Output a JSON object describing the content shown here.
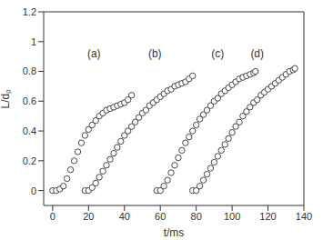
{
  "chart_data": {
    "type": "scatter",
    "x_label": "t/ms",
    "y_label": "L/dₚ",
    "xlim": [
      -5,
      140
    ],
    "xticks": [
      0,
      20,
      40,
      60,
      80,
      100,
      120,
      140
    ],
    "ylim": [
      -0.1,
      1.2
    ],
    "yticks": [
      0,
      0.2,
      0.4,
      0.6,
      0.8,
      1.0,
      1.2
    ],
    "marker": "circle",
    "grid": false,
    "series": [
      {
        "name": "(a)",
        "color": "#333333",
        "x": [
          0,
          2,
          4,
          6,
          8,
          10,
          12,
          14,
          16,
          18,
          20,
          22,
          24,
          26,
          28,
          30,
          32,
          34,
          36,
          38,
          40,
          42,
          44
        ],
        "values": [
          0,
          0,
          0.01,
          0.03,
          0.08,
          0.14,
          0.2,
          0.26,
          0.32,
          0.37,
          0.41,
          0.44,
          0.47,
          0.5,
          0.52,
          0.54,
          0.55,
          0.56,
          0.57,
          0.58,
          0.59,
          0.61,
          0.64
        ]
      },
      {
        "name": "(b)",
        "color": "#333333",
        "x": [
          18,
          20,
          22,
          24,
          26,
          28,
          30,
          32,
          34,
          36,
          38,
          40,
          42,
          44,
          46,
          48,
          50,
          52,
          54,
          56,
          58,
          60,
          62,
          64,
          66,
          68,
          70,
          72,
          74,
          76,
          78
        ],
        "values": [
          0,
          0,
          0.02,
          0.05,
          0.09,
          0.13,
          0.17,
          0.21,
          0.25,
          0.29,
          0.33,
          0.37,
          0.4,
          0.43,
          0.46,
          0.49,
          0.52,
          0.54,
          0.57,
          0.59,
          0.61,
          0.63,
          0.65,
          0.67,
          0.68,
          0.7,
          0.71,
          0.72,
          0.73,
          0.75,
          0.77
        ]
      },
      {
        "name": "(c)",
        "color": "#333333",
        "x": [
          58,
          60,
          62,
          64,
          66,
          68,
          70,
          72,
          74,
          76,
          78,
          80,
          82,
          84,
          86,
          88,
          90,
          92,
          94,
          96,
          98,
          100,
          102,
          104,
          106,
          108,
          110,
          112,
          113
        ],
        "values": [
          0,
          0,
          0.03,
          0.07,
          0.12,
          0.17,
          0.22,
          0.27,
          0.32,
          0.36,
          0.4,
          0.44,
          0.48,
          0.51,
          0.54,
          0.57,
          0.6,
          0.62,
          0.65,
          0.67,
          0.69,
          0.71,
          0.73,
          0.75,
          0.76,
          0.77,
          0.78,
          0.79,
          0.8
        ]
      },
      {
        "name": "(d)",
        "color": "#333333",
        "x": [
          78,
          80,
          82,
          84,
          86,
          88,
          90,
          92,
          94,
          96,
          98,
          100,
          102,
          104,
          106,
          108,
          110,
          112,
          114,
          116,
          118,
          120,
          122,
          124,
          126,
          128,
          130,
          132,
          134,
          135
        ],
        "values": [
          0,
          0,
          0.03,
          0.07,
          0.11,
          0.15,
          0.19,
          0.23,
          0.27,
          0.31,
          0.35,
          0.39,
          0.43,
          0.46,
          0.5,
          0.53,
          0.56,
          0.59,
          0.61,
          0.64,
          0.66,
          0.68,
          0.7,
          0.72,
          0.74,
          0.76,
          0.78,
          0.8,
          0.81,
          0.82
        ]
      }
    ]
  }
}
